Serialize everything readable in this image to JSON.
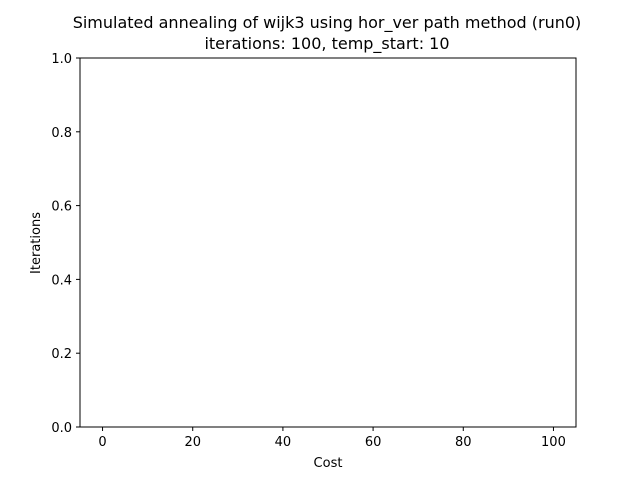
{
  "chart_data": {
    "type": "line",
    "title": "Simulated annealing of wijk3 using hor_ver path method (run0)",
    "subtitle": "iterations: 100, temp_start: 10",
    "xlabel": "Cost",
    "ylabel": "Iterations",
    "xlim": [
      -5,
      105
    ],
    "ylim": [
      0.0,
      1.0
    ],
    "x_ticks": [
      0,
      20,
      40,
      60,
      80,
      100
    ],
    "x_tick_labels": [
      "0",
      "20",
      "40",
      "60",
      "80",
      "100"
    ],
    "y_ticks": [
      0.0,
      0.2,
      0.4,
      0.6,
      0.8,
      1.0
    ],
    "y_tick_labels": [
      "0.0",
      "0.2",
      "0.4",
      "0.6",
      "0.8",
      "1.0"
    ],
    "grid": false,
    "series": []
  }
}
